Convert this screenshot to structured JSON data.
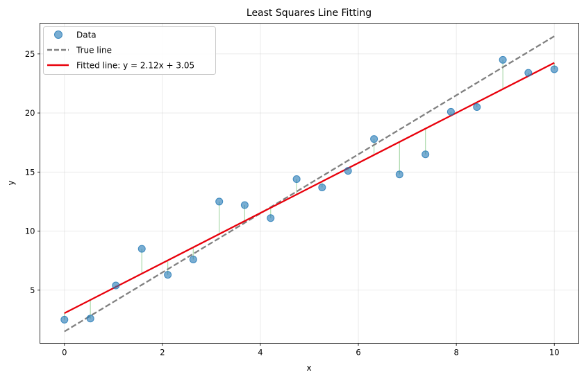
{
  "chart_data": {
    "type": "scatter",
    "title": "Least Squares Line Fitting",
    "xlabel": "x",
    "ylabel": "y",
    "xlim": [
      -0.5,
      10.5
    ],
    "ylim": [
      0.5,
      27.6
    ],
    "xticks": [
      0,
      2,
      4,
      6,
      8,
      10
    ],
    "yticks": [
      5,
      10,
      15,
      20,
      25
    ],
    "grid": true,
    "legend_position": "upper-left",
    "scatter": {
      "name": "Data",
      "color": "#1f77b4",
      "x": [
        0.0,
        0.53,
        1.05,
        1.58,
        2.11,
        2.63,
        3.16,
        3.68,
        4.21,
        4.74,
        5.26,
        5.79,
        6.32,
        6.84,
        7.37,
        7.89,
        8.42,
        8.95,
        9.47,
        10.0
      ],
      "y": [
        2.5,
        2.6,
        5.4,
        8.5,
        6.3,
        7.6,
        12.5,
        12.2,
        11.1,
        14.4,
        13.7,
        15.1,
        17.8,
        14.8,
        16.5,
        20.1,
        20.5,
        24.5,
        23.4,
        23.7
      ]
    },
    "true_line": {
      "name": "True line",
      "slope": 2.5,
      "intercept": 1.5,
      "color": "#808080",
      "style": "dashed"
    },
    "fitted_line": {
      "name": "Fitted line: y = 2.12x + 3.05",
      "slope": 2.12,
      "intercept": 3.05,
      "color": "#e8000b",
      "style": "solid"
    },
    "residuals": {
      "color": "#2ca02c"
    }
  }
}
